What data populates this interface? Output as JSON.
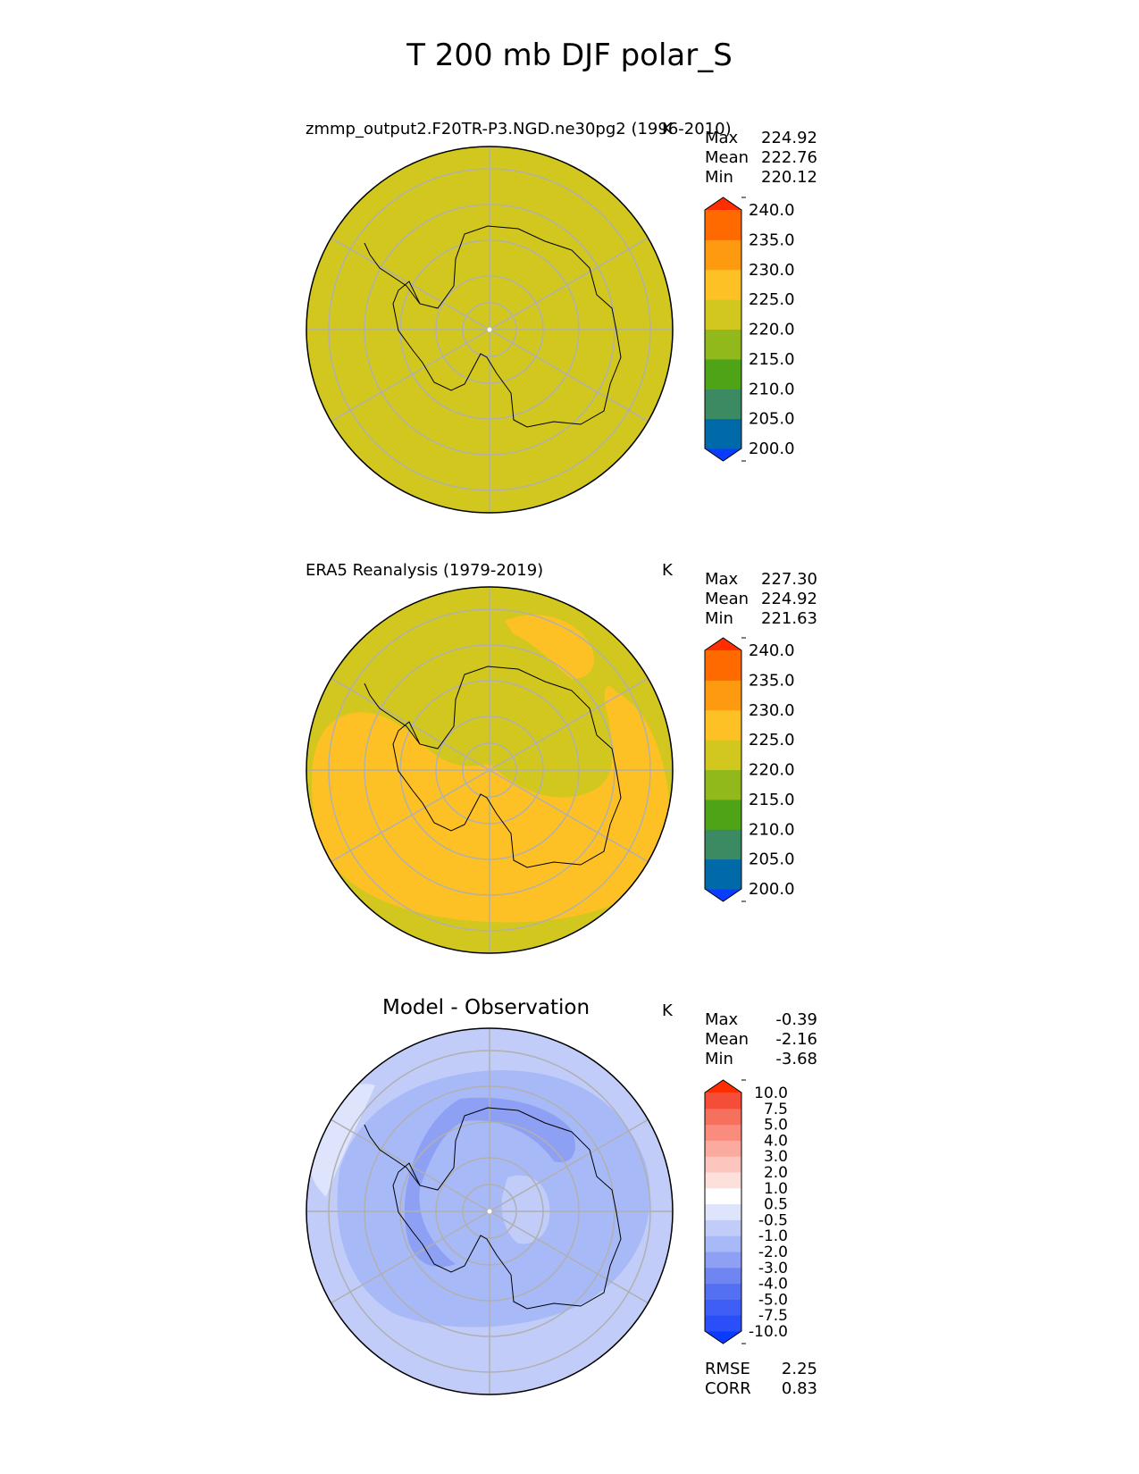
{
  "figure": {
    "title": "T 200 mb DJF polar_S"
  },
  "panels": [
    {
      "id": "model",
      "title": "zmmp_output2.F20TR-P3.NGD.ne30pg2 (1996-2010)",
      "units": "K",
      "stats": {
        "max_label": "Max",
        "max": "224.92",
        "mean_label": "Mean",
        "mean": "222.76",
        "min_label": "Min",
        "min": "220.12"
      },
      "colorbar": {
        "levels": [
          "200.0",
          "205.0",
          "210.0",
          "215.0",
          "220.0",
          "225.0",
          "230.0",
          "235.0",
          "240.0"
        ],
        "colors": [
          "#0a3cff",
          "#0069a8",
          "#3c8a62",
          "#4ea416",
          "#92b91b",
          "#d2c71f",
          "#fec125",
          "#fe9a0f",
          "#ff6a00",
          "#ff2d00"
        ]
      },
      "field": "uniform 220-225 K over whole domain"
    },
    {
      "id": "obs",
      "title": "ERA5 Reanalysis (1979-2019)",
      "units": "K",
      "stats": {
        "max_label": "Max",
        "max": "227.30",
        "mean_label": "Mean",
        "mean": "224.92",
        "min_label": "Min",
        "min": "221.63"
      },
      "colorbar": {
        "levels": [
          "200.0",
          "205.0",
          "210.0",
          "215.0",
          "220.0",
          "225.0",
          "230.0",
          "235.0",
          "240.0"
        ],
        "colors": [
          "#0a3cff",
          "#0069a8",
          "#3c8a62",
          "#4ea416",
          "#92b91b",
          "#d2c71f",
          "#fec125",
          "#fe9a0f",
          "#ff6a00",
          "#ff2d00"
        ]
      },
      "field": "220-225 K with 225-230 K band"
    },
    {
      "id": "diff",
      "title": "Model - Observation",
      "units": "K",
      "stats": {
        "max_label": "Max",
        "max": "-0.39",
        "mean_label": "Mean",
        "mean": "-2.16",
        "min_label": "Min",
        "min": "-3.68"
      },
      "colorbar": {
        "levels": [
          "-10.0",
          "-7.5",
          "-5.0",
          "-4.0",
          "-3.0",
          "-2.0",
          "-1.0",
          "-0.5",
          "0.5",
          "1.0",
          "2.0",
          "3.0",
          "4.0",
          "5.0",
          "7.5",
          "10.0"
        ],
        "colors": [
          "#0a3cff",
          "#2a4ef8",
          "#3f5ef5",
          "#5470f2",
          "#6f86f2",
          "#8da0f4",
          "#a8b9f7",
          "#c1ccf9",
          "#dde4fb",
          "#ffffff",
          "#fde0dc",
          "#fcc6be",
          "#fbaa9e",
          "#f98c7d",
          "#f6705e",
          "#f44d38",
          "#ff2d00"
        ]
      },
      "metrics": {
        "rmse_label": "RMSE",
        "rmse": "2.25",
        "corr_label": "CORR",
        "corr": "0.83"
      }
    }
  ],
  "chart_data": [
    {
      "type": "heatmap",
      "title": "zmmp_output2.F20TR-P3.NGD.ne30pg2 (1996-2010)",
      "projection": "south polar stereographic",
      "units": "K",
      "max": 224.92,
      "mean": 222.76,
      "min": 220.12,
      "levels": [
        200,
        205,
        210,
        215,
        220,
        225,
        230,
        235,
        240
      ]
    },
    {
      "type": "heatmap",
      "title": "ERA5 Reanalysis (1979-2019)",
      "projection": "south polar stereographic",
      "units": "K",
      "max": 227.3,
      "mean": 224.92,
      "min": 221.63,
      "levels": [
        200,
        205,
        210,
        215,
        220,
        225,
        230,
        235,
        240
      ]
    },
    {
      "type": "heatmap",
      "title": "Model - Observation",
      "projection": "south polar stereographic",
      "units": "K",
      "max": -0.39,
      "mean": -2.16,
      "min": -3.68,
      "rmse": 2.25,
      "corr": 0.83,
      "levels": [
        -10,
        -7.5,
        -5,
        -4,
        -3,
        -2,
        -1,
        -0.5,
        0.5,
        1,
        2,
        3,
        4,
        5,
        7.5,
        10
      ]
    }
  ]
}
